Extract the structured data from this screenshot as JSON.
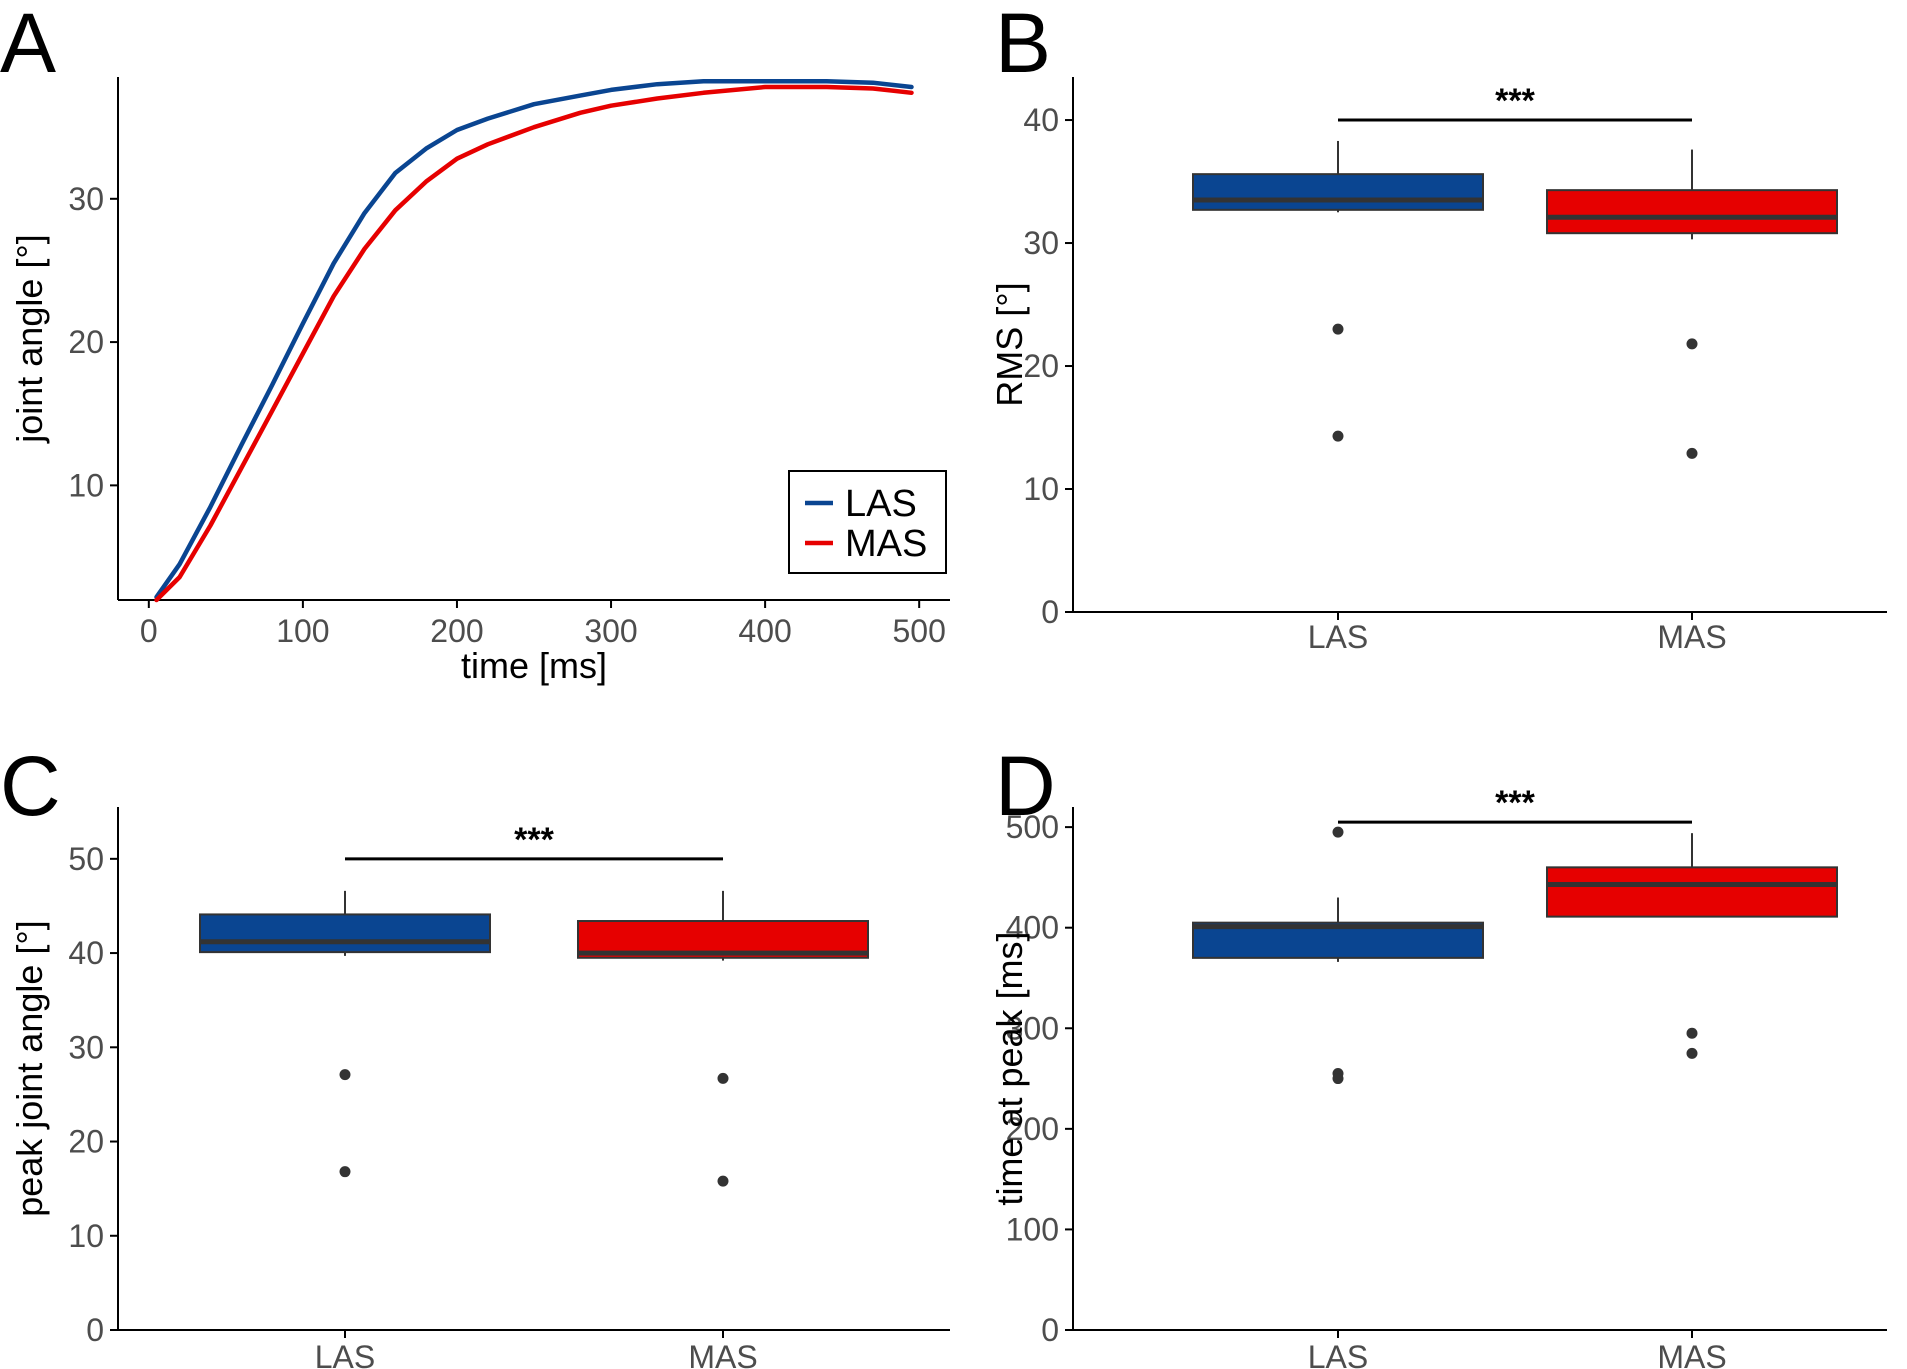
{
  "colors": {
    "LAS": "#0a4591",
    "MAS": "#e60000",
    "median": "#333333",
    "outlier": "#333333",
    "axis": "#000000"
  },
  "chart_data": [
    {
      "id": "A",
      "panel_label": "A",
      "type": "line",
      "title": "",
      "xlabel": "time [ms]",
      "ylabel": "joint angle [°]",
      "xlim": [
        -20,
        520
      ],
      "ylim": [
        2,
        38.5
      ],
      "xticks": [
        0,
        100,
        200,
        300,
        400,
        500
      ],
      "yticks": [
        10,
        20,
        30
      ],
      "legend": {
        "position": "bottom-right",
        "entries": [
          "LAS",
          "MAS"
        ]
      },
      "series": [
        {
          "name": "LAS",
          "x": [
            5,
            20,
            40,
            60,
            80,
            100,
            120,
            140,
            160,
            180,
            200,
            220,
            250,
            280,
            300,
            330,
            360,
            400,
            440,
            470,
            495
          ],
          "y": [
            2.2,
            4.5,
            8.5,
            12.8,
            17.0,
            21.3,
            25.5,
            29.0,
            31.8,
            33.5,
            34.8,
            35.6,
            36.6,
            37.2,
            37.6,
            38.0,
            38.2,
            38.2,
            38.2,
            38.1,
            37.8
          ]
        },
        {
          "name": "MAS",
          "x": [
            5,
            20,
            40,
            60,
            80,
            100,
            120,
            140,
            160,
            180,
            200,
            220,
            250,
            280,
            300,
            330,
            360,
            400,
            440,
            470,
            495
          ],
          "y": [
            2.0,
            3.6,
            7.2,
            11.2,
            15.2,
            19.2,
            23.2,
            26.5,
            29.2,
            31.2,
            32.8,
            33.8,
            35.0,
            36.0,
            36.5,
            37.0,
            37.4,
            37.8,
            37.8,
            37.7,
            37.4
          ]
        }
      ]
    },
    {
      "id": "B",
      "panel_label": "B",
      "type": "box",
      "title": "",
      "xlabel": "",
      "ylabel": "RMS [°]",
      "ylim": [
        0,
        43.5
      ],
      "yticks": [
        0,
        10,
        20,
        30,
        40
      ],
      "categories": [
        "LAS",
        "MAS"
      ],
      "boxes": [
        {
          "name": "LAS",
          "whisker_low": 32.5,
          "q1": 32.7,
          "median": 33.5,
          "q3": 35.6,
          "whisker_high": 38.3,
          "outliers": [
            23.0,
            14.3
          ]
        },
        {
          "name": "MAS",
          "whisker_low": 30.3,
          "q1": 30.8,
          "median": 32.1,
          "q3": 34.3,
          "whisker_high": 37.6,
          "outliers": [
            21.8,
            12.9
          ]
        }
      ],
      "significance": {
        "label": "***",
        "value": 40.0
      }
    },
    {
      "id": "C",
      "panel_label": "C",
      "type": "box",
      "title": "",
      "xlabel": "",
      "ylabel": "peak joint angle [°]",
      "ylim": [
        0,
        55.5
      ],
      "yticks": [
        0,
        10,
        20,
        30,
        40,
        50
      ],
      "categories": [
        "LAS",
        "MAS"
      ],
      "boxes": [
        {
          "name": "LAS",
          "whisker_low": 39.7,
          "q1": 40.1,
          "median": 41.2,
          "q3": 44.1,
          "whisker_high": 46.6,
          "outliers": [
            27.1,
            16.8
          ]
        },
        {
          "name": "MAS",
          "whisker_low": 39.2,
          "q1": 39.5,
          "median": 40.0,
          "q3": 43.4,
          "whisker_high": 46.6,
          "outliers": [
            26.7,
            15.8
          ]
        }
      ],
      "significance": {
        "label": "***",
        "value": 50.0
      }
    },
    {
      "id": "D",
      "panel_label": "D",
      "type": "box",
      "title": "",
      "xlabel": "",
      "ylabel": "time at peak [ms]",
      "ylim": [
        0,
        520
      ],
      "yticks": [
        0,
        100,
        200,
        300,
        400,
        500
      ],
      "categories": [
        "LAS",
        "MAS"
      ],
      "boxes": [
        {
          "name": "LAS",
          "whisker_low": 366,
          "q1": 370,
          "median": 401,
          "q3": 405,
          "whisker_high": 430,
          "outliers": [
            495,
            255,
            250
          ]
        },
        {
          "name": "MAS",
          "whisker_low": 411,
          "q1": 411,
          "median": 443,
          "q3": 460,
          "whisker_high": 494,
          "outliers": [
            295,
            275
          ]
        }
      ],
      "significance": {
        "label": "***",
        "value": 505
      }
    }
  ]
}
